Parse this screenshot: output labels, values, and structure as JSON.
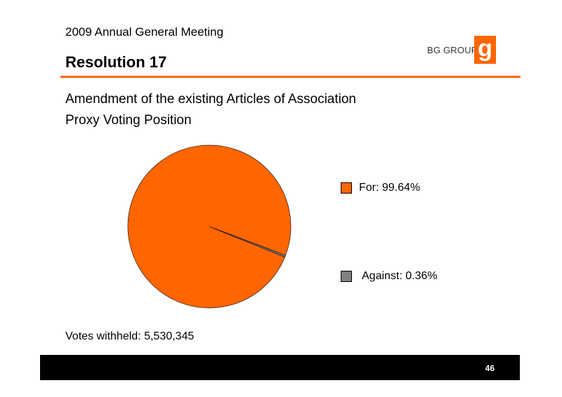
{
  "header": {
    "meeting": "2009 Annual General Meeting",
    "title": "Resolution 17",
    "logo_text": "BG GROUP",
    "logo_glyph": "g",
    "accent_color": "#ff6600"
  },
  "subtitle_lines": [
    "Amendment of the existing Articles of Association",
    "Proxy Voting Position"
  ],
  "chart_data": {
    "type": "pie",
    "title": "",
    "slices": [
      {
        "label": "For: 99.64%",
        "name": "For",
        "value": 99.64,
        "color": "#ff6600"
      },
      {
        "label": "Against: 0.36%",
        "name": "Against",
        "value": 0.36,
        "color": "#808080"
      }
    ],
    "start_angle_deg": 22,
    "legend": "right"
  },
  "votes_withheld": "Votes withheld: 5,530,345",
  "footer": {
    "page_number": "46"
  }
}
